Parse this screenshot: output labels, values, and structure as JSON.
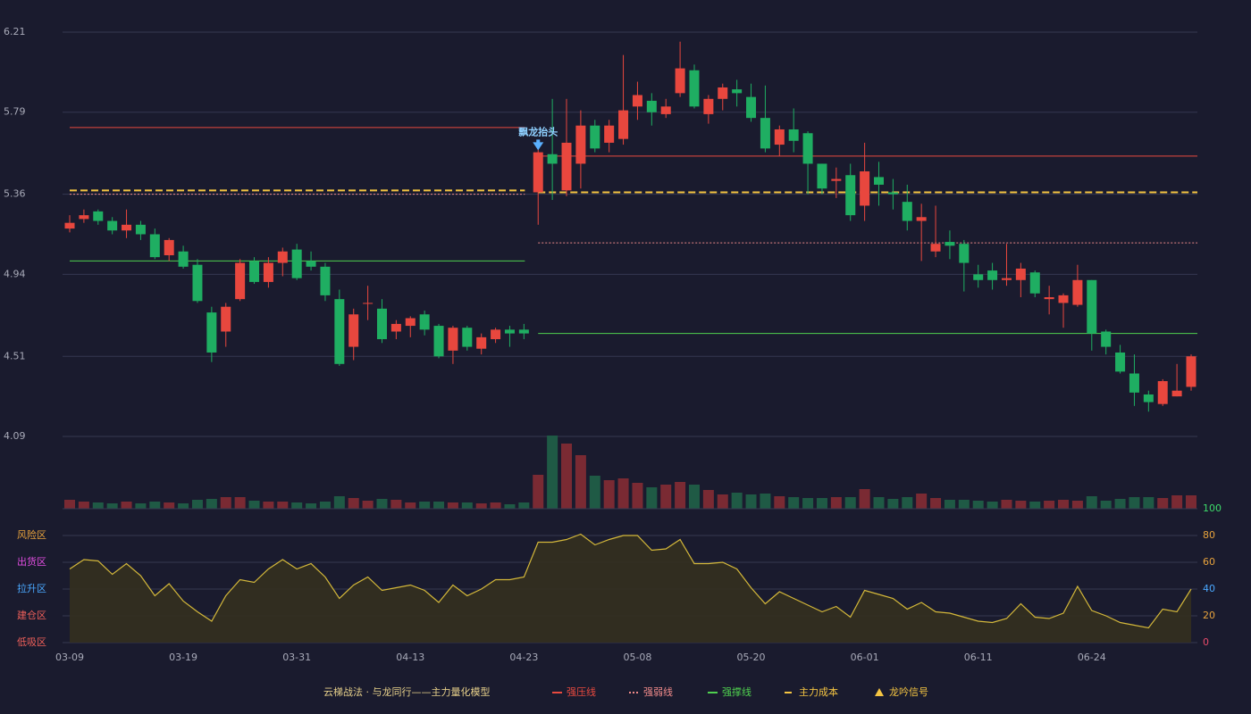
{
  "chart_data": [
    {
      "type": "candlestick",
      "title": "云梯战法 · 与龙同行——主力量化模型",
      "categories": [
        "03-09",
        null,
        null,
        null,
        null,
        null,
        null,
        null,
        "03-19",
        null,
        null,
        null,
        null,
        null,
        null,
        null,
        "03-31",
        null,
        null,
        null,
        null,
        null,
        null,
        null,
        "04-13",
        null,
        null,
        null,
        null,
        null,
        null,
        null,
        "04-23",
        null,
        null,
        null,
        null,
        null,
        null,
        null,
        "05-08",
        null,
        null,
        null,
        null,
        null,
        null,
        null,
        "05-20",
        null,
        null,
        null,
        null,
        null,
        null,
        null,
        "06-01",
        null,
        null,
        null,
        null,
        null,
        null,
        null,
        "06-11",
        null,
        null,
        null,
        null,
        null,
        null,
        null,
        "06-24",
        null,
        null,
        null,
        null,
        null,
        null,
        null
      ],
      "open": [
        5.18,
        5.23,
        5.27,
        5.22,
        5.17,
        5.2,
        5.15,
        5.04,
        5.06,
        4.99,
        4.74,
        4.64,
        4.81,
        5.01,
        4.9,
        5.0,
        5.07,
        5.01,
        4.98,
        4.81,
        4.56,
        4.79,
        4.76,
        4.64,
        4.67,
        4.73,
        4.67,
        4.54,
        4.66,
        4.55,
        4.6,
        4.65,
        4.65,
        5.37,
        5.57,
        5.38,
        5.52,
        5.72,
        5.63,
        5.65,
        5.82,
        5.85,
        5.78,
        5.89,
        6.01,
        5.78,
        5.86,
        5.91,
        5.87,
        5.76,
        5.62,
        5.7,
        5.68,
        5.52,
        5.43,
        5.46,
        5.3,
        5.45,
        5.37,
        5.32,
        5.22,
        5.06,
        5.11,
        5.1,
        4.94,
        4.96,
        4.91,
        4.91,
        4.95,
        4.81,
        4.79,
        4.78,
        4.91,
        4.64,
        4.53,
        4.42,
        4.31,
        4.26,
        4.3,
        4.35
      ],
      "high": [
        5.25,
        5.28,
        5.28,
        5.24,
        5.28,
        5.22,
        5.18,
        5.13,
        5.09,
        5.02,
        4.77,
        4.79,
        5.02,
        5.03,
        5.03,
        5.08,
        5.1,
        5.06,
        5.0,
        4.86,
        4.76,
        4.88,
        4.81,
        4.7,
        4.72,
        4.75,
        4.68,
        4.67,
        4.67,
        4.63,
        4.66,
        4.67,
        4.68,
        5.6,
        5.86,
        5.86,
        5.8,
        5.75,
        5.75,
        6.09,
        5.95,
        5.89,
        5.86,
        6.16,
        6.04,
        5.88,
        5.94,
        5.96,
        5.94,
        5.93,
        5.72,
        5.81,
        5.69,
        5.52,
        5.5,
        5.52,
        5.63,
        5.53,
        5.44,
        5.41,
        5.31,
        5.3,
        5.17,
        5.12,
        4.99,
        5.0,
        5.1,
        5.0,
        4.96,
        4.88,
        4.84,
        4.99,
        4.91,
        4.65,
        4.57,
        4.52,
        4.33,
        4.39,
        4.47,
        4.52
      ],
      "low": [
        5.16,
        5.21,
        5.2,
        5.15,
        5.13,
        5.12,
        5.02,
        5.01,
        4.97,
        4.79,
        4.48,
        4.56,
        4.8,
        4.89,
        4.87,
        4.93,
        4.91,
        4.96,
        4.8,
        4.46,
        4.49,
        4.7,
        4.58,
        4.6,
        4.61,
        4.62,
        4.5,
        4.47,
        4.54,
        4.52,
        4.58,
        4.56,
        4.6,
        5.2,
        5.33,
        5.35,
        5.39,
        5.58,
        5.58,
        5.62,
        5.75,
        5.72,
        5.76,
        5.87,
        5.81,
        5.73,
        5.8,
        5.82,
        5.74,
        5.58,
        5.56,
        5.58,
        5.36,
        5.36,
        5.34,
        5.22,
        5.22,
        5.3,
        5.28,
        5.17,
        5.01,
        5.03,
        5.02,
        4.85,
        4.87,
        4.86,
        4.88,
        4.82,
        4.82,
        4.73,
        4.66,
        4.77,
        4.54,
        4.52,
        4.42,
        4.25,
        4.22,
        4.25,
        4.3,
        4.33
      ],
      "close": [
        5.21,
        5.25,
        5.22,
        5.17,
        5.2,
        5.15,
        5.03,
        5.12,
        4.98,
        4.8,
        4.53,
        4.77,
        5.0,
        4.9,
        5.0,
        5.06,
        4.92,
        4.98,
        4.83,
        4.47,
        4.73,
        4.79,
        4.6,
        4.68,
        4.71,
        4.65,
        4.51,
        4.66,
        4.56,
        4.61,
        4.65,
        4.63,
        4.63,
        5.58,
        5.52,
        5.63,
        5.72,
        5.6,
        5.72,
        5.8,
        5.88,
        5.79,
        5.82,
        6.02,
        5.82,
        5.86,
        5.92,
        5.89,
        5.76,
        5.6,
        5.7,
        5.64,
        5.52,
        5.39,
        5.44,
        5.25,
        5.48,
        5.41,
        5.36,
        5.22,
        5.24,
        5.1,
        5.09,
        5.0,
        4.91,
        4.91,
        4.92,
        4.97,
        4.84,
        4.82,
        4.83,
        4.91,
        4.63,
        4.56,
        4.43,
        4.32,
        4.27,
        4.38,
        4.33,
        4.51
      ],
      "up_color": "#e8473e",
      "down_color": "#1fae62",
      "ylim": [
        4.09,
        6.21
      ],
      "yticks": [
        4.09,
        4.51,
        4.94,
        5.36,
        5.79,
        6.21
      ],
      "grid": true,
      "levels": [
        {
          "name": "强压线",
          "color": "#e84a3f",
          "style": "solid",
          "segments": [
            {
              "from": 0,
              "to": 32,
              "value": 5.71
            },
            {
              "from": 33,
              "to": 79,
              "value": 5.56
            }
          ]
        },
        {
          "name": "强弱线",
          "color": "#f08a8a",
          "style": "dotted",
          "segments": [
            {
              "from": 0,
              "to": 32,
              "value": 5.36
            },
            {
              "from": 33,
              "to": 79,
              "value": 5.105
            }
          ]
        },
        {
          "name": "强撑线",
          "color": "#4fd14f",
          "style": "solid",
          "segments": [
            {
              "from": 0,
              "to": 32,
              "value": 5.01
            },
            {
              "from": 33,
              "to": 79,
              "value": 4.63
            }
          ]
        },
        {
          "name": "主力成本",
          "color": "#f5c542",
          "style": "dashed",
          "segments": [
            {
              "from": 0,
              "to": 32,
              "value": 5.38
            },
            {
              "from": 33,
              "to": 79,
              "value": 5.37
            }
          ]
        }
      ],
      "signals": {
        "name": "龙吟信号",
        "color": "#f5c542",
        "marker_color": "#5ab0ff",
        "points": [
          {
            "index": 33,
            "label": "飘龙抬头"
          }
        ]
      }
    },
    {
      "type": "bar",
      "up_color": "#7a2a33",
      "down_color": "#1f5a45",
      "ylim": [
        0,
        82
      ],
      "values": [
        10,
        8,
        7,
        6,
        8,
        6,
        8,
        7,
        6,
        10,
        11,
        13,
        13,
        9,
        8,
        8,
        7,
        6,
        8,
        14,
        12,
        9,
        11,
        10,
        7,
        8,
        8,
        7,
        7,
        6,
        7,
        5,
        7,
        38,
        82,
        73,
        60,
        37,
        32,
        34,
        29,
        24,
        27,
        30,
        27,
        21,
        16,
        18,
        16,
        17,
        14,
        13,
        12,
        12,
        13,
        13,
        22,
        13,
        11,
        13,
        17,
        12,
        10,
        10,
        9,
        8,
        10,
        9,
        8,
        9,
        10,
        9,
        14,
        9,
        11,
        13,
        13,
        12,
        15,
        15
      ]
    },
    {
      "type": "line",
      "color": "#d4b83a",
      "fill": "#34301f",
      "ylim": [
        0,
        100
      ],
      "yticks": [
        0,
        20,
        40,
        60,
        80,
        100
      ],
      "ytick_colors": [
        "#e84a6a",
        "#e8a33c",
        "#4aa8ff",
        "#e8a33c",
        "#e8a33c",
        "#3ddc6a"
      ],
      "zones": [
        {
          "label": "风险区",
          "value": 80,
          "color": "#e8a33c"
        },
        {
          "label": "出货区",
          "value": 60,
          "color": "#e04ee0"
        },
        {
          "label": "拉升区",
          "value": 40,
          "color": "#4aa8ff"
        },
        {
          "label": "建仓区",
          "value": 20,
          "color": "#f0605a"
        },
        {
          "label": "低吸区",
          "value": 0,
          "color": "#f0605a"
        }
      ],
      "values": [
        55,
        62,
        61,
        51,
        59,
        50,
        35,
        44,
        31,
        23,
        16,
        35,
        47,
        45,
        55,
        62,
        55,
        59,
        49,
        33,
        43,
        49,
        39,
        41,
        43,
        39,
        30,
        43,
        35,
        40,
        47,
        47,
        49,
        75,
        75,
        77,
        81,
        73,
        77,
        80,
        80,
        69,
        70,
        77,
        59,
        59,
        60,
        55,
        41,
        29,
        38,
        33,
        28,
        23,
        27,
        19,
        39,
        36,
        33,
        25,
        30,
        23,
        22,
        19,
        16,
        15,
        18,
        29,
        19,
        18,
        22,
        42,
        24,
        20,
        15,
        13,
        11,
        25,
        23,
        40
      ]
    }
  ]
}
